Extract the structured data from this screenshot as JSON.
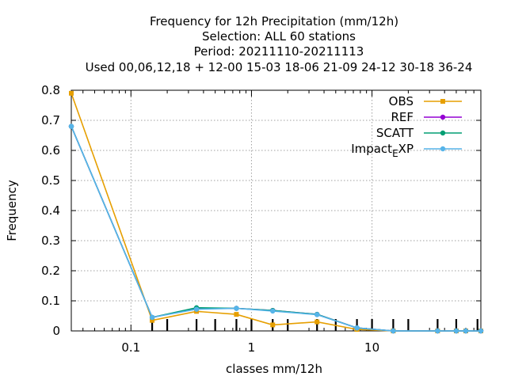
{
  "chart_data": {
    "type": "line",
    "title": [
      "Frequency  for 12h Precipitation (mm/12h)",
      "Selection: ALL     60 stations",
      "Period: 20211110-20211113",
      "Used  00,06,12,18 + 12-00 15-03 18-06 21-09 24-12 30-18 36-24"
    ],
    "xlabel": "classes mm/12h",
    "ylabel": "Frequency",
    "xscale": "log",
    "xlim": [
      0.032,
      80
    ],
    "ylim": [
      0,
      0.8
    ],
    "xticks": [
      {
        "value": 0.1,
        "label": "0.1"
      },
      {
        "value": 1,
        "label": "1"
      },
      {
        "value": 10,
        "label": "10"
      }
    ],
    "yticks": [
      {
        "value": 0,
        "label": "0"
      },
      {
        "value": 0.1,
        "label": "0.1"
      },
      {
        "value": 0.2,
        "label": "0.2"
      },
      {
        "value": 0.3,
        "label": "0.3"
      },
      {
        "value": 0.4,
        "label": "0.4"
      },
      {
        "value": 0.5,
        "label": "0.5"
      },
      {
        "value": 0.6,
        "label": "0.6"
      },
      {
        "value": 0.7,
        "label": "0.7"
      },
      {
        "value": 0.8,
        "label": "0.8"
      }
    ],
    "class_marks": [
      0.15,
      0.2,
      0.35,
      0.5,
      0.75,
      1,
      1.5,
      2,
      3.5,
      5,
      7.5,
      10,
      15,
      20,
      35,
      50,
      75
    ],
    "grid": true,
    "legend_position": "top-right",
    "x": [
      0.032,
      0.15,
      0.35,
      0.75,
      1.5,
      3.5,
      7.5,
      15,
      35,
      50,
      60,
      80
    ],
    "series": [
      {
        "name": "OBS",
        "color": "#e69f00",
        "values": [
          0.79,
          0.035,
          0.065,
          0.055,
          0.02,
          0.03,
          0.005,
          0,
          0,
          0,
          0,
          0
        ]
      },
      {
        "name": "REF",
        "color": "#9400d3",
        "values": [
          0.68,
          0.045,
          0.075,
          0.075,
          0.068,
          0.055,
          0.01,
          0,
          0,
          0,
          0,
          0
        ]
      },
      {
        "name": "SCATT",
        "color": "#009e73",
        "values": [
          0.68,
          0.045,
          0.077,
          0.075,
          0.068,
          0.055,
          0.01,
          0,
          0,
          0,
          0,
          0
        ]
      },
      {
        "name": "Impact_EXP",
        "color": "#56b4e9",
        "values": [
          0.68,
          0.045,
          0.072,
          0.075,
          0.066,
          0.054,
          0.01,
          0,
          0,
          0,
          0,
          0
        ]
      }
    ]
  }
}
